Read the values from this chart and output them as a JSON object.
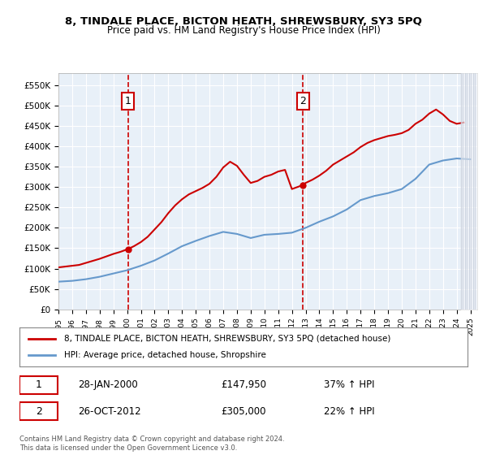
{
  "title": "8, TINDALE PLACE, BICTON HEATH, SHREWSBURY, SY3 5PQ",
  "subtitle": "Price paid vs. HM Land Registry's House Price Index (HPI)",
  "legend_line1": "8, TINDALE PLACE, BICTON HEATH, SHREWSBURY, SY3 5PQ (detached house)",
  "legend_line2": "HPI: Average price, detached house, Shropshire",
  "sale1_label": "1",
  "sale1_date": "28-JAN-2000",
  "sale1_price": "£147,950",
  "sale1_hpi": "37% ↑ HPI",
  "sale1_x": 2000.07,
  "sale1_y": 147950,
  "sale2_label": "2",
  "sale2_date": "26-OCT-2012",
  "sale2_price": "£305,000",
  "sale2_hpi": "22% ↑ HPI",
  "sale2_x": 2012.81,
  "sale2_y": 305000,
  "vline1_x": 2000.07,
  "vline2_x": 2012.81,
  "ylim": [
    0,
    580000
  ],
  "xlim_start": 1995,
  "xlim_end": 2025.5,
  "copyright_text": "Contains HM Land Registry data © Crown copyright and database right 2024.\nThis data is licensed under the Open Government Licence v3.0.",
  "background_color": "#e8f0f8",
  "plot_bg_color": "#e8f0f8",
  "hpi_color": "#6699cc",
  "price_color": "#cc0000",
  "vline_color": "#cc0000",
  "hatch_color": "#c0c8d8",
  "years": [
    1995,
    1996,
    1997,
    1998,
    1999,
    2000,
    2001,
    2002,
    2003,
    2004,
    2005,
    2006,
    2007,
    2008,
    2009,
    2010,
    2011,
    2012,
    2013,
    2014,
    2015,
    2016,
    2017,
    2018,
    2019,
    2020,
    2021,
    2022,
    2023,
    2024,
    2025
  ],
  "hpi_values": [
    68000,
    70000,
    74000,
    80000,
    88000,
    96000,
    107000,
    120000,
    137000,
    155000,
    168000,
    180000,
    190000,
    185000,
    175000,
    183000,
    185000,
    188000,
    200000,
    215000,
    228000,
    245000,
    268000,
    278000,
    285000,
    295000,
    320000,
    355000,
    365000,
    370000,
    368000
  ],
  "price_values_x": [
    1995.0,
    1995.5,
    1996.0,
    1996.5,
    1997.0,
    1997.5,
    1998.0,
    1998.5,
    1999.0,
    1999.5,
    2000.07,
    2000.5,
    2001.0,
    2001.5,
    2002.0,
    2002.5,
    2003.0,
    2003.5,
    2004.0,
    2004.5,
    2005.0,
    2005.5,
    2006.0,
    2006.5,
    2007.0,
    2007.5,
    2008.0,
    2008.5,
    2009.0,
    2009.5,
    2010.0,
    2010.5,
    2011.0,
    2011.5,
    2012.0,
    2012.81,
    2013.0,
    2013.5,
    2014.0,
    2014.5,
    2015.0,
    2015.5,
    2016.0,
    2016.5,
    2017.0,
    2017.5,
    2018.0,
    2018.5,
    2019.0,
    2019.5,
    2020.0,
    2020.5,
    2021.0,
    2021.5,
    2022.0,
    2022.5,
    2023.0,
    2023.5,
    2024.0,
    2024.5
  ],
  "price_values_y": [
    103000,
    105000,
    107000,
    109000,
    114000,
    119000,
    124000,
    130000,
    136000,
    141000,
    147950,
    155000,
    165000,
    178000,
    196000,
    214000,
    236000,
    255000,
    270000,
    282000,
    290000,
    298000,
    308000,
    325000,
    348000,
    362000,
    352000,
    330000,
    310000,
    315000,
    325000,
    330000,
    338000,
    342000,
    295000,
    305000,
    310000,
    318000,
    328000,
    340000,
    355000,
    365000,
    375000,
    385000,
    398000,
    408000,
    415000,
    420000,
    425000,
    428000,
    432000,
    440000,
    455000,
    465000,
    480000,
    490000,
    478000,
    462000,
    455000,
    458000
  ]
}
